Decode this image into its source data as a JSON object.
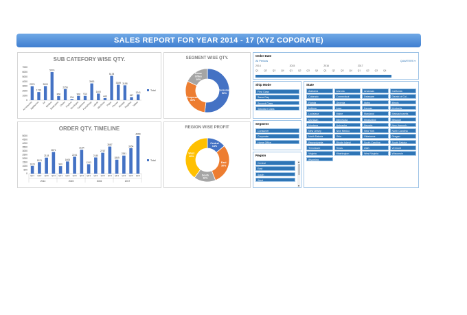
{
  "banner": {
    "title": "SALES REPORT FOR YEAR 2014 - 17 (XYZ COPORATE)"
  },
  "subcat": {
    "title": "SUB CATEFORY WISE QTY.",
    "legend": "Total",
    "chart_data": {
      "type": "bar",
      "title": "SUB CATEFORY WISE QTY.",
      "ylim": [
        0,
        7000
      ],
      "y_ticks": [
        "0",
        "1000",
        "2000",
        "3000",
        "4000",
        "5000",
        "6000",
        "7000"
      ],
      "categories": [
        "Accessories",
        "Appliances",
        "Art",
        "Binders",
        "Bookcases",
        "Chairs",
        "Copiers",
        "Envelopes",
        "Fasteners",
        "Furnishings",
        "Labels",
        "Machines",
        "Paper",
        "Phones",
        "Storage",
        "Supplies",
        "Tables"
      ],
      "series": [
        {
          "name": "Total",
          "values": [
            2976,
            1729,
            3000,
            5974,
            868,
            2356,
            234,
            906,
            914,
            3563,
            1400,
            440,
            5178,
            3289,
            3158,
            647,
            1241
          ]
        }
      ]
    }
  },
  "timeline": {
    "title": "ORDER QTY. TIMELINE",
    "legend": "Total",
    "chart_data": {
      "type": "bar",
      "title": "ORDER QTY. TIMELINE",
      "ylim": [
        0,
        5000
      ],
      "y_ticks": [
        "0",
        "500",
        "1000",
        "1500",
        "2000",
        "2500",
        "3000",
        "3500",
        "4000",
        "4500",
        "5000"
      ],
      "categories": [
        "Qtr1",
        "Qtr2",
        "Qtr3",
        "Qtr4",
        "Qtr1",
        "Qtr2",
        "Qtr3",
        "Qtr4",
        "Qtr1",
        "Qtr2",
        "Qtr3",
        "Qtr4",
        "Qtr1",
        "Qtr2",
        "Qtr3",
        "Qtr4"
      ],
      "groups": [
        "2014",
        "2015",
        "2016",
        "2017"
      ],
      "series": [
        {
          "name": "Total",
          "values": [
            1020,
            1521,
            2118,
            2871,
            990,
            1606,
            2241,
            3164,
            1243,
            2140,
            2767,
            3587,
            1845,
            2391,
            3364,
            4999
          ]
        }
      ]
    }
  },
  "segment": {
    "title": "SEGMENT WISE QTY.",
    "chart_data": {
      "type": "pie",
      "title": "SEGMENT WISE QTY.",
      "slices": [
        {
          "name": "Consumer",
          "label": "Consumer\n52%",
          "value": 52,
          "color": "#4472c4"
        },
        {
          "name": "Corporate",
          "label": "Corporate\n30%",
          "value": 30,
          "color": "#ed7d31"
        },
        {
          "name": "Home Office",
          "label": "Home\nOffice\n18%",
          "value": 18,
          "color": "#a5a5a5"
        }
      ]
    }
  },
  "region": {
    "title": "REGION WISE PROFIT",
    "chart_data": {
      "type": "pie",
      "title": "REGION WISE PROFIT",
      "slices": [
        {
          "name": "Central",
          "label": "Central\n14%",
          "value": 14,
          "color": "#4472c4"
        },
        {
          "name": "East",
          "label": "East\n30%",
          "value": 30,
          "color": "#ed7d31"
        },
        {
          "name": "South",
          "label": "South\n16%",
          "value": 16,
          "color": "#a5a5a5"
        },
        {
          "name": "West",
          "label": "West\n40%",
          "value": 40,
          "color": "#ffc000"
        }
      ]
    }
  },
  "orderdate": {
    "header": "Order Date",
    "all_periods": "All Periods",
    "level": "QUARTERS",
    "years": [
      "2014",
      "2015",
      "2016",
      "2017"
    ],
    "quarters": [
      "Q1",
      "Q2",
      "Q3",
      "Q4",
      "Q1",
      "Q2",
      "Q3",
      "Q4",
      "Q1",
      "Q2",
      "Q3",
      "Q4",
      "Q1",
      "Q2",
      "Q3",
      "Q4"
    ]
  },
  "shipmode": {
    "header": "Ship Mode",
    "items": [
      "First Class",
      "Same Day",
      "Second Class",
      "Standard Class"
    ]
  },
  "segslicer": {
    "header": "Segment",
    "items": [
      "Consumer",
      "Corporate",
      "Home Office"
    ]
  },
  "regslicer": {
    "header": "Region",
    "items": [
      "Central",
      "East",
      "South",
      "West"
    ]
  },
  "states": {
    "header": "State",
    "items": [
      "Alabama",
      "Arizona",
      "Arkansas",
      "California",
      "Colorado",
      "Connecticut",
      "Delaware",
      "District of Col...",
      "Florida",
      "Georgia",
      "Idaho",
      "Illinois",
      "Indiana",
      "Iowa",
      "Kansas",
      "Kentucky",
      "Louisiana",
      "Maine",
      "Maryland",
      "Massachusetts",
      "Michigan",
      "Minnesota",
      "Mississippi",
      "Missouri",
      "Montana",
      "Nebraska",
      "Nevada",
      "New Hampsh...",
      "New Jersey",
      "New Mexico",
      "New York",
      "North Carolina",
      "North Dakota",
      "Ohio",
      "Oklahoma",
      "Oregon",
      "Pennsylvania",
      "Rhode Island",
      "South Carolina",
      "South Dakota",
      "Tennessee",
      "Texas",
      "Utah",
      "Vermont",
      "Virginia",
      "Washington",
      "West Virginia",
      "Wisconsin",
      "Wyoming"
    ]
  },
  "colors": {
    "bar": "#4472c4",
    "slicer_fill": "#2e75b6",
    "banner": "#4a86d4"
  }
}
